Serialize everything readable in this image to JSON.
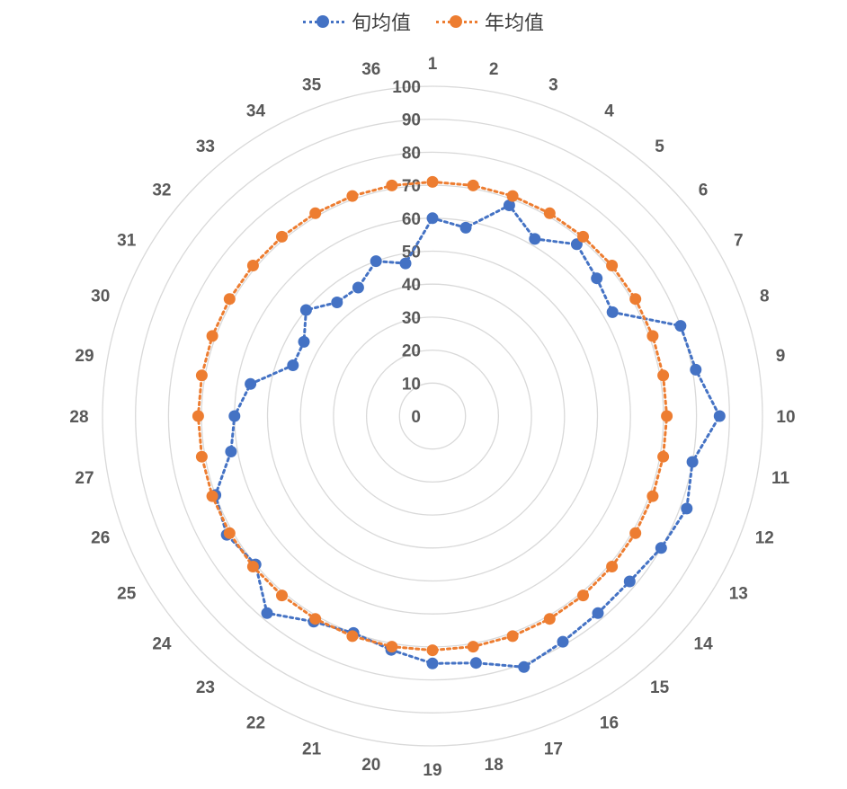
{
  "chart_data": {
    "type": "radar",
    "categories": [
      "1",
      "2",
      "3",
      "4",
      "5",
      "6",
      "7",
      "8",
      "9",
      "10",
      "11",
      "12",
      "13",
      "14",
      "15",
      "16",
      "17",
      "18",
      "19",
      "20",
      "21",
      "22",
      "23",
      "24",
      "25",
      "26",
      "27",
      "28",
      "29",
      "30",
      "31",
      "32",
      "33",
      "34",
      "35",
      "36"
    ],
    "ylim": [
      0,
      100
    ],
    "tick_labels": [
      "0",
      "10",
      "20",
      "30",
      "40",
      "50",
      "60",
      "70",
      "80",
      "90",
      "100"
    ],
    "legend_position": "top",
    "grid": true,
    "series": [
      {
        "name": "旬均值",
        "color": "#4472C4",
        "values": [
          60,
          58,
          68,
          62,
          68,
          65,
          63,
          80,
          81,
          87,
          80,
          82,
          80,
          78,
          78,
          79,
          81,
          76,
          75,
          72,
          70,
          72,
          78,
          70,
          72,
          70,
          62,
          60,
          56,
          45,
          45,
          50,
          45,
          45,
          50,
          47
        ]
      },
      {
        "name": "年均值",
        "color": "#ED7D31",
        "values": [
          71,
          71,
          71,
          71,
          71,
          71,
          71,
          71,
          71,
          71,
          71,
          71,
          71,
          71,
          71,
          71,
          71,
          71,
          71,
          71,
          71,
          71,
          71,
          71,
          71,
          71,
          71,
          71,
          71,
          71,
          71,
          71,
          71,
          71,
          71,
          71
        ]
      }
    ]
  }
}
